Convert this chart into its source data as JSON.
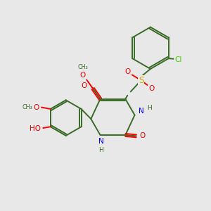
{
  "background_color": "#e8e8e8",
  "bond_color": "#3a6b28",
  "nitrogen_color": "#0000ff",
  "oxygen_color": "#ff0000",
  "sulfur_color": "#ccaa00",
  "chlorine_color": "#44cc00",
  "figsize": [
    3.0,
    3.0
  ],
  "dpi": 100,
  "xlim": [
    0,
    10
  ],
  "ylim": [
    0,
    10
  ]
}
